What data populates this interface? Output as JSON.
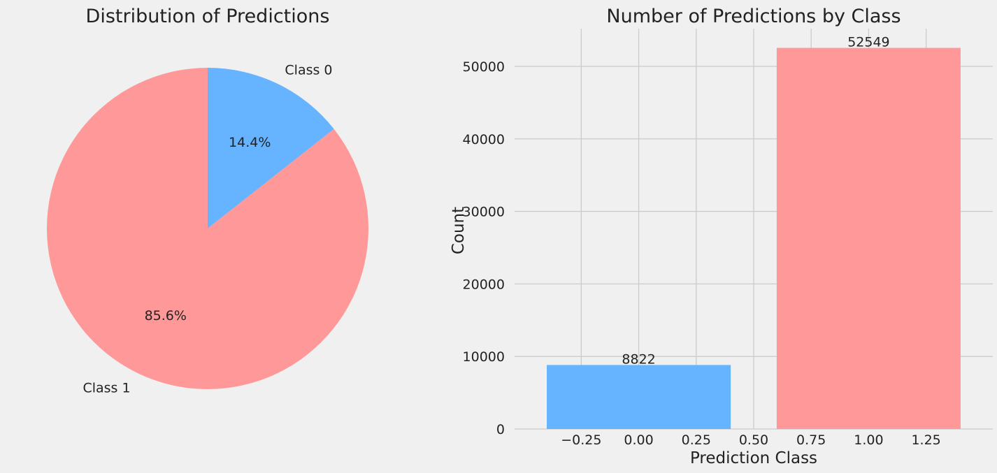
{
  "chart_data": [
    {
      "type": "pie",
      "title": "Distribution of Predictions",
      "labels": [
        "Class 0",
        "Class 1"
      ],
      "values": [
        8822,
        52549
      ],
      "percent_labels": [
        "14.4%",
        "85.6%"
      ],
      "colors": [
        "#66b3ff",
        "#ff9999"
      ],
      "start_angle_deg": 90,
      "direction": "clockwise"
    },
    {
      "type": "bar",
      "title": "Number of Predictions by Class",
      "x": [
        0,
        1
      ],
      "values": [
        8822,
        52549
      ],
      "value_labels": [
        "8822",
        "52549"
      ],
      "colors": [
        "#66b3ff",
        "#ff9999"
      ],
      "xlabel": "Prediction Class",
      "ylabel": "Count",
      "xlim": [
        -0.54,
        1.54
      ],
      "ylim": [
        0,
        55200
      ],
      "xticks": [
        -0.25,
        0.0,
        0.25,
        0.5,
        0.75,
        1.0,
        1.25
      ],
      "xtick_labels": [
        "−0.25",
        "0.00",
        "0.25",
        "0.50",
        "0.75",
        "1.00",
        "1.25"
      ],
      "yticks": [
        0,
        10000,
        20000,
        30000,
        40000,
        50000
      ],
      "ytick_labels": [
        "0",
        "10000",
        "20000",
        "30000",
        "40000",
        "50000"
      ],
      "bar_width": 0.8,
      "grid": true
    }
  ]
}
